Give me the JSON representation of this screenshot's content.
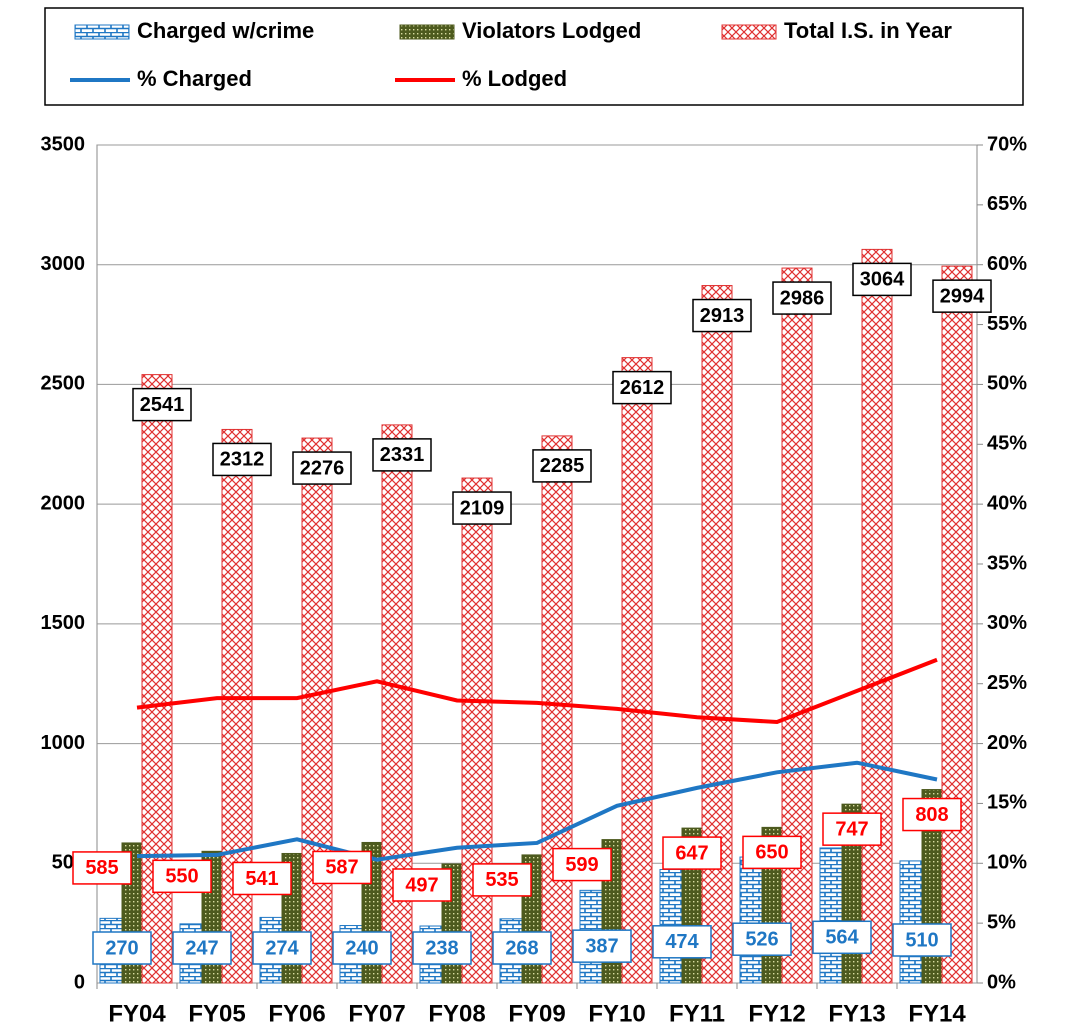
{
  "chart_data": {
    "type": "bar",
    "categories": [
      "FY04",
      "FY05",
      "FY06",
      "FY07",
      "FY08",
      "FY09",
      "FY10",
      "FY11",
      "FY12",
      "FY13",
      "FY14"
    ],
    "series": [
      {
        "name": "Charged w/crime",
        "color": "#1f77c4",
        "values": [
          270,
          247,
          274,
          240,
          238,
          268,
          387,
          474,
          526,
          564,
          510
        ]
      },
      {
        "name": "Violators Lodged",
        "color": "#4d5a1e",
        "values": [
          585,
          550,
          541,
          587,
          497,
          535,
          599,
          647,
          650,
          747,
          808
        ]
      },
      {
        "name": "Total I.S. in Year",
        "color": "#e03030",
        "values": [
          2541,
          2312,
          2276,
          2331,
          2109,
          2285,
          2612,
          2913,
          2986,
          3064,
          2994
        ]
      },
      {
        "name": "% Charged",
        "type": "line",
        "axis": "y2",
        "color": "#1f77c4",
        "values": [
          10.6,
          10.7,
          12.0,
          10.3,
          11.3,
          11.7,
          14.8,
          16.3,
          17.6,
          18.4,
          17.0
        ]
      },
      {
        "name": "% Lodged",
        "type": "line",
        "axis": "y2",
        "color": "#ff0000",
        "values": [
          23.0,
          23.8,
          23.8,
          25.2,
          23.6,
          23.4,
          22.9,
          22.2,
          21.8,
          24.4,
          27.0
        ]
      }
    ],
    "ylim": [
      0,
      3500
    ],
    "yticks": [
      0,
      500,
      1000,
      1500,
      2000,
      2500,
      3000,
      3500
    ],
    "y2lim": [
      0,
      70
    ],
    "y2ticks": [
      {
        "value": 0,
        "label": "0%"
      },
      {
        "value": 5,
        "label": "5%"
      },
      {
        "value": 10,
        "label": "10%"
      },
      {
        "value": 15,
        "label": "15%"
      },
      {
        "value": 20,
        "label": "20%"
      },
      {
        "value": 25,
        "label": "25%"
      },
      {
        "value": 30,
        "label": "30%"
      },
      {
        "value": 35,
        "label": "35%"
      },
      {
        "value": 40,
        "label": "40%"
      },
      {
        "value": 45,
        "label": "45%"
      },
      {
        "value": 50,
        "label": "50%"
      },
      {
        "value": 55,
        "label": "55%"
      },
      {
        "value": 60,
        "label": "60%"
      },
      {
        "value": 65,
        "label": "65%"
      },
      {
        "value": 70,
        "label": "70%"
      }
    ],
    "grid": true
  }
}
